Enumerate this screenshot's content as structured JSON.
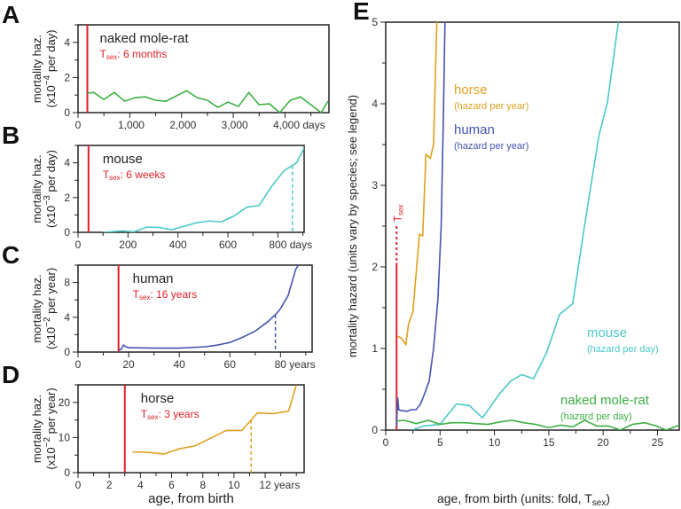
{
  "chart_data": [
    {
      "letter": "A",
      "type": "line",
      "species": "naked mole-rat",
      "tsex_label": "T",
      "tsex_sub": "sex",
      "tsex_text": ": 6 months",
      "tsex": 180,
      "ylabel1": "mortality haz.",
      "ylabel2": "(x10",
      "ylabel_exp": "−4",
      "ylabel3": " per day)",
      "xlim": [
        0,
        4850
      ],
      "ylim": [
        0,
        5
      ],
      "xticks": [
        0,
        1000,
        2000,
        3000,
        4000
      ],
      "xtick_labels": [
        "0",
        "1,000",
        "2,000",
        "3,000",
        "4,000 days"
      ],
      "yticks": [
        0,
        2,
        4
      ],
      "color": "#3cb043",
      "x": [
        180,
        300,
        500,
        700,
        900,
        1100,
        1300,
        1500,
        1700,
        1900,
        2100,
        2300,
        2500,
        2700,
        2900,
        3100,
        3300,
        3500,
        3700,
        3900,
        4100,
        4300,
        4500,
        4700,
        4830
      ],
      "y": [
        1.1,
        1.15,
        0.75,
        1.15,
        0.65,
        0.85,
        0.9,
        0.7,
        0.65,
        0.95,
        1.25,
        0.85,
        0.7,
        0.3,
        0.6,
        0.35,
        1.15,
        0.45,
        0.5,
        0,
        0.7,
        0.9,
        0.45,
        0,
        0.65
      ]
    },
    {
      "letter": "B",
      "type": "line",
      "species": "mouse",
      "tsex_label": "T",
      "tsex_sub": "sex",
      "tsex_text": ": 6 weeks",
      "tsex": 42,
      "dashed": 858,
      "ylabel1": "mortality haz.",
      "ylabel2": "(x10",
      "ylabel_exp": "−3",
      "ylabel3": " per day)",
      "xlim": [
        0,
        905
      ],
      "ylim": [
        0,
        5
      ],
      "xticks": [
        0,
        200,
        400,
        600,
        800
      ],
      "xtick_labels": [
        "0",
        "200",
        "400",
        "600",
        "800 days"
      ],
      "yticks": [
        0,
        2,
        4
      ],
      "color": "#4cc8c8",
      "x": [
        100,
        175,
        225,
        275,
        325,
        375,
        425,
        475,
        525,
        575,
        625,
        675,
        725,
        775,
        825,
        875,
        910
      ],
      "y": [
        0,
        0.08,
        0.03,
        0.3,
        0.28,
        0.15,
        0.35,
        0.55,
        0.65,
        0.6,
        0.95,
        1.45,
        1.55,
        2.65,
        3.55,
        4.0,
        5
      ]
    },
    {
      "letter": "C",
      "type": "line",
      "species": "human",
      "tsex_label": "T",
      "tsex_sub": "sex",
      "tsex_text": ": 16 years",
      "tsex": 16,
      "dashed": 78,
      "ylabel1": "mortality haz.",
      "ylabel2": "(x10",
      "ylabel_exp": "−2",
      "ylabel3": " per year)",
      "xlim": [
        0,
        92.5
      ],
      "ylim": [
        0,
        10
      ],
      "xticks": [
        0,
        20,
        40,
        60,
        80
      ],
      "xtick_labels": [
        "0",
        "20",
        "40",
        "60",
        "80 years"
      ],
      "yticks": [
        0,
        4,
        8
      ],
      "color": "#4455b0",
      "x": [
        16,
        17,
        18,
        19,
        20,
        30,
        40,
        50,
        55,
        60,
        65,
        70,
        75,
        78,
        80,
        83,
        86,
        87
      ],
      "y": [
        0.2,
        0.3,
        0.8,
        0.6,
        0.5,
        0.45,
        0.45,
        0.6,
        0.8,
        1.1,
        1.7,
        2.4,
        3.5,
        4.3,
        5,
        6.5,
        9.5,
        10
      ]
    },
    {
      "letter": "D",
      "type": "line",
      "species": "horse",
      "tsex_label": "T",
      "tsex_sub": "sex",
      "tsex_text": ": 3 years",
      "tsex": 3,
      "dashed": 11.1,
      "ylabel1": "mortality haz.",
      "ylabel2": "(x10",
      "ylabel_exp": "−2",
      "ylabel3": " per year)",
      "xlabel": "age, from birth",
      "xlim": [
        0,
        14.5
      ],
      "ylim": [
        0,
        25
      ],
      "xticks": [
        0,
        2,
        4,
        6,
        8,
        10,
        12
      ],
      "xtick_labels": [
        "0",
        "2",
        "4",
        "6",
        "8",
        "10",
        "12 years"
      ],
      "yticks": [
        0,
        10,
        20
      ],
      "color": "#e0a020",
      "x": [
        3.5,
        4.5,
        5.5,
        6.5,
        7.5,
        8.5,
        9.5,
        10.5,
        11.1,
        11.5,
        12.5,
        13.5,
        14
      ],
      "y": [
        5.9,
        5.8,
        5.3,
        6.8,
        7.6,
        9.8,
        12,
        12,
        15,
        17,
        16.8,
        17.5,
        25
      ]
    },
    {
      "letter": "E",
      "type": "line",
      "ylabel": "mortality hazard (units vary by species; see legend)",
      "xlabel": "age, from birth (units: fold, T",
      "xlabel_sub": "sex",
      "xlabel_end": ")",
      "tsex_label": "T",
      "tsex_sub": "sex",
      "tsex": 1,
      "xlim": [
        0,
        27
      ],
      "ylim": [
        0,
        5
      ],
      "xticks": [
        0,
        5,
        10,
        15,
        20,
        25
      ],
      "yticks": [
        0,
        1,
        2,
        3,
        4,
        5
      ],
      "series": [
        {
          "name": "horse",
          "unit": "(hazard per year)",
          "color": "#e0a020",
          "x": [
            1.1,
            1.4,
            1.85,
            2.1,
            2.5,
            3.1,
            3.4,
            3.7,
            4.1,
            4.4,
            4.6,
            4.7
          ],
          "y": [
            1.15,
            1.13,
            1.05,
            1.3,
            1.45,
            2.4,
            2.38,
            3.38,
            3.33,
            3.5,
            4.5,
            5
          ]
        },
        {
          "name": "human",
          "unit": "(hazard per year)",
          "color": "#4455b0",
          "x": [
            1.0,
            1.1,
            1.2,
            1.4,
            2.0,
            2.3,
            2.8,
            3.2,
            3.5,
            4.0,
            4.4,
            4.8,
            5.1,
            5.3,
            5.45
          ],
          "y": [
            0.05,
            0.4,
            0.25,
            0.24,
            0.23,
            0.25,
            0.25,
            0.32,
            0.42,
            0.6,
            1.0,
            1.6,
            2.5,
            3.8,
            5
          ]
        },
        {
          "name": "mouse",
          "unit": "(hazard per day)",
          "color": "#4cc8c8",
          "x": [
            2.4,
            3.5,
            5,
            6.5,
            7.7,
            8.9,
            10.5,
            11.5,
            12.5,
            13.6,
            14.8,
            16,
            17.2,
            18.4,
            19.6,
            20.4,
            21.4
          ],
          "y": [
            0,
            0.05,
            0.07,
            0.32,
            0.3,
            0.15,
            0.45,
            0.6,
            0.68,
            0.63,
            0.95,
            1.42,
            1.55,
            2.6,
            3.6,
            4.02,
            5
          ]
        },
        {
          "name": "naked mole-rat",
          "unit": "(hazard per day)",
          "color": "#3cb043",
          "x": [
            1,
            1.7,
            2.8,
            3.9,
            5.0,
            6.1,
            7.2,
            8.3,
            9.4,
            10.5,
            11.6,
            12.7,
            13.8,
            15.0,
            16.1,
            17.2,
            18.3,
            19.4,
            20.5,
            21.6,
            22.7,
            23.8,
            24.9,
            25.8,
            27
          ],
          "y": [
            0.11,
            0.12,
            0.08,
            0.12,
            0.07,
            0.09,
            0.09,
            0.08,
            0.07,
            0.1,
            0.12,
            0.09,
            0.07,
            0.03,
            0.06,
            0.04,
            0.12,
            0.05,
            0.05,
            0,
            0.07,
            0.09,
            0.05,
            0,
            0.06
          ]
        }
      ]
    }
  ],
  "colors": {
    "tsex": "#e0202a",
    "axis": "#222222"
  }
}
